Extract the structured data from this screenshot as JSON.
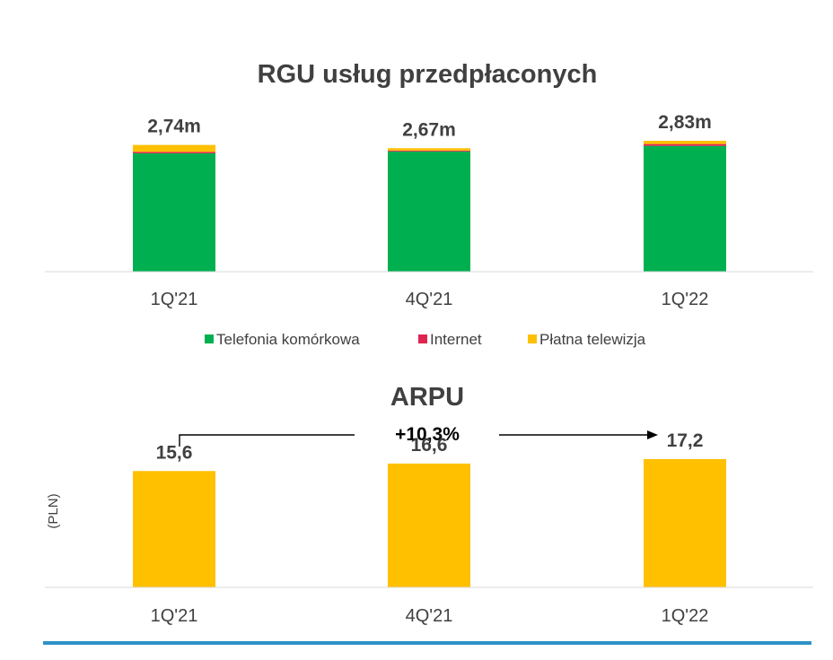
{
  "chart_data": [
    {
      "type": "bar",
      "stacked": true,
      "title": "RGU usług przedpłaconych",
      "categories": [
        "1Q'21",
        "4Q'21",
        "1Q'22"
      ],
      "totals": [
        "2,74m",
        "2,67m",
        "2,83m"
      ],
      "ylim": [
        0,
        2.83
      ],
      "grid": false,
      "legend_position": "bottom",
      "series": [
        {
          "name": "Telefonia komórkowa",
          "color": "#00B050",
          "values": [
            2.56,
            2.6,
            2.72
          ]
        },
        {
          "name": "Internet",
          "color": "#E0244F",
          "values": [
            0.03,
            0.02,
            0.04
          ]
        },
        {
          "name": "Płatna telewizja",
          "color": "#FFC000",
          "values": [
            0.15,
            0.05,
            0.07
          ]
        }
      ]
    },
    {
      "type": "bar",
      "title": "ARPU",
      "ylabel": "(PLN)",
      "categories": [
        "1Q'21",
        "4Q'21",
        "1Q'22"
      ],
      "values": [
        15.6,
        16.6,
        17.2
      ],
      "value_labels": [
        "15,6",
        "16,6",
        "17,2"
      ],
      "color": "#FFC000",
      "ylim": [
        0,
        19.0
      ],
      "grid": false,
      "annotation": {
        "text": "+10,3%",
        "from": "1Q'21",
        "to": "1Q'22"
      }
    }
  ],
  "colors": {
    "axis": "#D9D9D9",
    "text": "#404040",
    "footer_rule": "#2E92C7"
  }
}
